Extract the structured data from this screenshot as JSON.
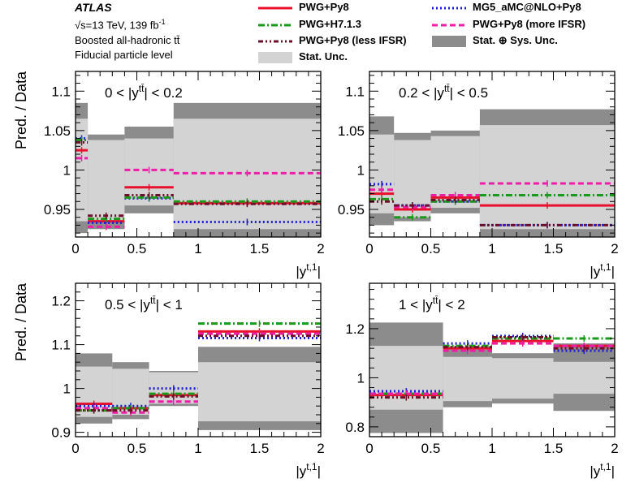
{
  "header": {
    "atlas": "ATLAS",
    "energy": "√s=13 TeV, 139 fb",
    "energy_sup": "-1",
    "channel": "Boosted all-hadronic tt̄",
    "level": "Fiducial particle level"
  },
  "legend": [
    {
      "label": "PWG+Py8",
      "color": "#e8112d",
      "style": "solid",
      "kind": "line"
    },
    {
      "label": "MG5_aMC@NLO+Py8",
      "color": "#1f1fd6",
      "style": "dotted",
      "kind": "line"
    },
    {
      "label": "PWG+H7.1.3",
      "color": "#1a9a1a",
      "style": "dashdot",
      "kind": "line"
    },
    {
      "label": "PWG+Py8 (more IFSR)",
      "color": "#ee1ea8",
      "style": "dashed",
      "kind": "line"
    },
    {
      "label": "PWG+Py8 (less IFSR)",
      "color": "#6e0f2a",
      "style": "dashdotdot",
      "kind": "line"
    },
    {
      "label": "Stat. ⊕ Sys. Unc.",
      "color": "#8c8c8c",
      "style": "box",
      "kind": "box"
    },
    {
      "label": "Stat. Unc.",
      "color": "#d3d3d3",
      "style": "box",
      "kind": "box"
    }
  ],
  "colors": {
    "total_unc": "#8c8c8c",
    "stat_unc": "#d3d3d3",
    "bg": "#ffffff"
  },
  "chart_data": [
    {
      "type": "line",
      "region": "0 < |y^tt̄| < 0.2",
      "region_prefix": "0 < |y",
      "region_sup": "tt̄",
      "region_suffix": "| < 0.2",
      "ylabel": "Pred. / Data",
      "xlabel": "|y^{t,1}|",
      "xlabel_main": "|y",
      "xlabel_sup": "t,1",
      "xlabel_end": "|",
      "xlim": [
        0,
        2
      ],
      "ylim": [
        0.915,
        1.125
      ],
      "xticks": [
        0,
        0.5,
        1,
        1.5,
        2
      ],
      "xtick_labels": [
        "0",
        "0.5",
        "1",
        "1.5",
        "2"
      ],
      "yticks": [
        0.95,
        1.0,
        1.05,
        1.1
      ],
      "ytick_labels": [
        "0.95",
        "1",
        "1.05",
        "1.1"
      ],
      "bin_edges": [
        0,
        0.1,
        0.4,
        0.8,
        2.0
      ],
      "total_unc": [
        [
          0.92,
          1.085
        ],
        [
          0.925,
          1.045
        ],
        [
          0.945,
          1.055
        ],
        [
          0.915,
          1.085
        ]
      ],
      "stat_unc": [
        [
          0.935,
          1.065
        ],
        [
          0.935,
          1.038
        ],
        [
          0.955,
          1.04
        ],
        [
          0.925,
          1.065
        ]
      ],
      "series": [
        {
          "name": "PWG+Py8",
          "values": [
            1.025,
            0.935,
            0.978,
            0.958
          ]
        },
        {
          "name": "MG5_aMC@NLO+Py8",
          "values": [
            1.04,
            0.933,
            0.964,
            0.934
          ]
        },
        {
          "name": "PWG+H7.1.3",
          "values": [
            1.038,
            0.938,
            0.965,
            0.96
          ]
        },
        {
          "name": "PWG+Py8 (more IFSR)",
          "values": [
            1.015,
            0.928,
            1.0,
            0.996
          ]
        },
        {
          "name": "PWG+Py8 (less IFSR)",
          "values": [
            1.035,
            0.942,
            0.968,
            0.957
          ]
        }
      ]
    },
    {
      "type": "line",
      "region": "0.2 < |y^tt̄| < 0.5",
      "region_prefix": "0.2 < |y",
      "region_sup": "tt̄",
      "region_suffix": "| < 0.5",
      "ylabel": "",
      "xlabel": "|y^{t,1}|",
      "xlabel_main": "|y",
      "xlabel_sup": "t,1",
      "xlabel_end": "|",
      "xlim": [
        0,
        2
      ],
      "ylim": [
        0.915,
        1.125
      ],
      "xticks": [
        0,
        0.5,
        1,
        1.5,
        2
      ],
      "xtick_labels": [
        "0",
        "0.5",
        "1",
        "1.5",
        "2"
      ],
      "yticks": [
        0.95,
        1.0,
        1.05,
        1.1
      ],
      "ytick_labels": [
        "0.95",
        "1",
        "1.05",
        "1.1"
      ],
      "bin_edges": [
        0,
        0.2,
        0.5,
        0.9,
        2.0
      ],
      "total_unc": [
        [
          0.93,
          1.068
        ],
        [
          0.935,
          1.047
        ],
        [
          0.945,
          1.05
        ],
        [
          0.915,
          1.077
        ]
      ],
      "stat_unc": [
        [
          0.945,
          1.045
        ],
        [
          0.94,
          1.038
        ],
        [
          0.952,
          1.043
        ],
        [
          0.925,
          1.057
        ]
      ],
      "series": [
        {
          "name": "PWG+Py8",
          "values": [
            0.97,
            0.95,
            0.965,
            0.955
          ]
        },
        {
          "name": "MG5_aMC@NLO+Py8",
          "values": [
            0.982,
            0.955,
            0.96,
            0.93
          ]
        },
        {
          "name": "PWG+H7.1.3",
          "values": [
            0.963,
            0.94,
            0.96,
            0.968
          ]
        },
        {
          "name": "PWG+Py8 (more IFSR)",
          "values": [
            0.975,
            0.953,
            0.968,
            0.983
          ]
        },
        {
          "name": "PWG+Py8 (less IFSR)",
          "values": [
            0.96,
            0.955,
            0.962,
            0.93
          ]
        }
      ]
    },
    {
      "type": "line",
      "region": "0.5 < |y^tt̄| < 1",
      "region_prefix": "0.5 < |y",
      "region_sup": "tt̄",
      "region_suffix": "| < 1",
      "ylabel": "Pred. / Data",
      "xlabel": "|y^{t,1}|",
      "xlabel_main": "|y",
      "xlabel_sup": "t,1",
      "xlabel_end": "|",
      "xlim": [
        0,
        2
      ],
      "ylim": [
        0.89,
        1.24
      ],
      "xticks": [
        0,
        0.5,
        1,
        1.5,
        2
      ],
      "xtick_labels": [
        "0",
        "0.5",
        "1",
        "1.5",
        "2"
      ],
      "yticks": [
        0.9,
        1.0,
        1.1,
        1.2
      ],
      "ytick_labels": [
        "0.9",
        "1",
        "1.1",
        "1.2"
      ],
      "bin_edges": [
        0,
        0.3,
        0.6,
        1.0,
        2.0
      ],
      "total_unc": [
        [
          0.92,
          1.08
        ],
        [
          0.93,
          1.06
        ],
        [
          0.96,
          1.04
        ],
        [
          0.905,
          1.095
        ]
      ],
      "stat_unc": [
        [
          0.935,
          1.05
        ],
        [
          0.94,
          1.045
        ],
        [
          0.965,
          1.037
        ],
        [
          0.925,
          1.06
        ]
      ],
      "series": [
        {
          "name": "PWG+Py8",
          "values": [
            0.965,
            0.955,
            0.985,
            1.13
          ]
        },
        {
          "name": "MG5_aMC@NLO+Py8",
          "values": [
            0.96,
            0.96,
            1.0,
            1.115
          ]
        },
        {
          "name": "PWG+H7.1.3",
          "values": [
            0.95,
            0.955,
            0.988,
            1.148
          ]
        },
        {
          "name": "PWG+Py8 (more IFSR)",
          "values": [
            0.955,
            0.945,
            0.97,
            1.125
          ]
        },
        {
          "name": "PWG+Py8 (less IFSR)",
          "values": [
            0.95,
            0.95,
            0.982,
            1.12
          ]
        }
      ]
    },
    {
      "type": "line",
      "region": "1 < |y^tt̄| < 2",
      "region_prefix": "1 < |y",
      "region_sup": "tt̄",
      "region_suffix": "| < 2",
      "ylabel": "",
      "xlabel": "|y^{t,1}|",
      "xlabel_main": "|y",
      "xlabel_sup": "t,1",
      "xlabel_end": "|",
      "xlim": [
        0,
        2
      ],
      "ylim": [
        0.76,
        1.385
      ],
      "xticks": [
        0,
        0.5,
        1,
        1.5,
        2
      ],
      "xtick_labels": [
        "0",
        "0.5",
        "1",
        "1.5",
        "2"
      ],
      "yticks": [
        0.8,
        1.0,
        1.2
      ],
      "ytick_labels": [
        "0.8",
        "1",
        "1.2"
      ],
      "bin_edges": [
        0,
        0.6,
        1.0,
        1.5,
        2.0
      ],
      "total_unc": [
        [
          0.775,
          1.225
        ],
        [
          0.88,
          1.115
        ],
        [
          0.895,
          1.1
        ],
        [
          0.865,
          1.14
        ]
      ],
      "stat_unc": [
        [
          0.87,
          1.13
        ],
        [
          0.905,
          1.085
        ],
        [
          0.915,
          1.08
        ],
        [
          0.935,
          1.065
        ]
      ],
      "series": [
        {
          "name": "PWG+Py8",
          "values": [
            0.93,
            1.12,
            1.15,
            1.13
          ]
        },
        {
          "name": "MG5_aMC@NLO+Py8",
          "values": [
            0.945,
            1.14,
            1.17,
            1.11
          ]
        },
        {
          "name": "PWG+H7.1.3",
          "values": [
            0.935,
            1.13,
            1.16,
            1.16
          ]
        },
        {
          "name": "PWG+Py8 (more IFSR)",
          "values": [
            0.935,
            1.11,
            1.14,
            1.13
          ]
        },
        {
          "name": "PWG+Py8 (less IFSR)",
          "values": [
            0.92,
            1.125,
            1.165,
            1.12
          ]
        }
      ]
    }
  ]
}
